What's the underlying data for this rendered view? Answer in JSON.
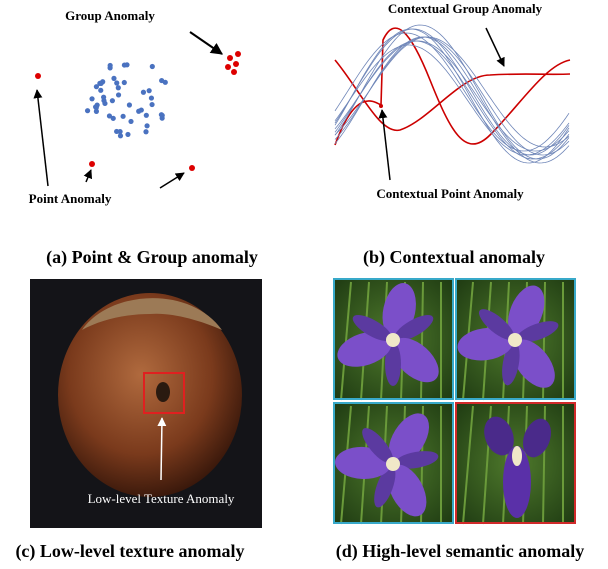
{
  "panels": [
    {
      "caption": "(a) Point & Group anomaly",
      "labels": [
        "Group Anomaly",
        "Point Anomaly"
      ]
    },
    {
      "caption": "(b) Contextual anomaly",
      "labels": [
        "Contextual Group Anomaly",
        "Contextual Point Anomaly"
      ]
    },
    {
      "caption": "(c) Low-level texture anomaly",
      "labels": [
        "Low-level Texture Anomaly"
      ]
    },
    {
      "caption": "(d) High-level semantic anomaly",
      "labels": []
    }
  ]
}
